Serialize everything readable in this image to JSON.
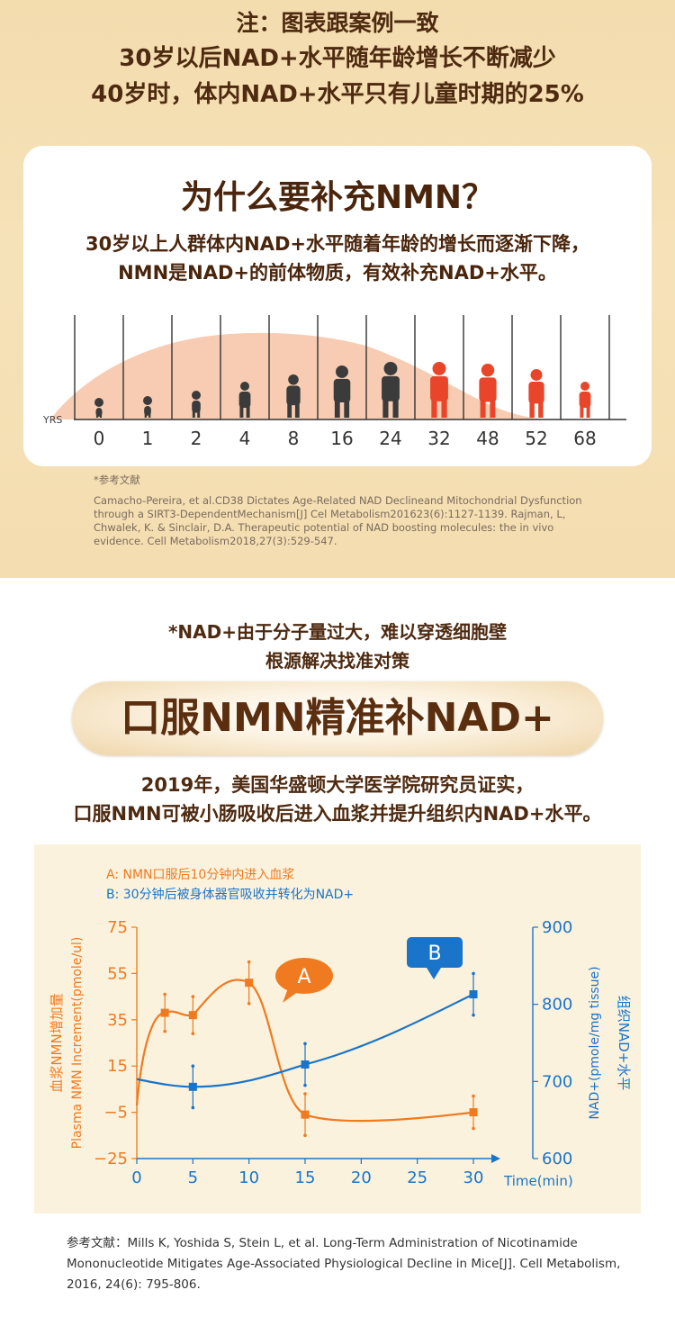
{
  "header": {
    "note": "注：图表跟案例一致",
    "line1": "30岁以后NAD+水平随年龄增长不断减少",
    "line2": "40岁时，体内NAD+水平只有儿童时期的25%"
  },
  "card": {
    "title": "为什么要补充NMN？",
    "desc1": "30岁以上人群体内NAD+水平随着年龄的增长而逐渐下降，",
    "desc2": "NMN是NAD+的前体物质，有效补充NAD+水平。",
    "yrs_label": "YRS",
    "ages": [
      "0",
      "1",
      "2",
      "4",
      "8",
      "16",
      "24",
      "32",
      "48",
      "52",
      "68"
    ],
    "curve_color": "#f6c3a5"
  },
  "reference1": {
    "title": "*参考文献",
    "text": "Camacho-Pereira, et al.CD38 Dictates Age-Related NAD Declineand Mitochondrial Dysfunction through a SIRT3-DependentMechanism[J] Cel Metabolism201623(6):1127-1139. Rajman, L, Chwalek, K. & Sinclair, D.A. Therapeutic potential of NAD boosting molecules: the in vivo evidence. Cell Metabolism2018,27(3):529-547."
  },
  "middle": {
    "line1": "*NAD+由于分子量过大，难以穿透细胞壁",
    "line2": "根源解决找准对策",
    "banner": "口服NMN精准补NAD+",
    "study1": "2019年，美国华盛顿大学医学院研究员证实，",
    "study2": "口服NMN可被小肠吸收后进入血浆并提升组织内NAD+水平。"
  },
  "chart_data": {
    "type": "line",
    "legend": [
      {
        "text": "A: NMN口服后10分钟内进入血浆",
        "color": "#f07a1f"
      },
      {
        "text": "B: 30分钟后被身体器官吸收并转化为NAD+",
        "color": "#1a74c9"
      }
    ],
    "x": [
      0,
      2.5,
      5,
      10,
      15,
      30
    ],
    "xticks": [
      "0",
      "5",
      "10",
      "15",
      "20",
      "25",
      "30"
    ],
    "xtick_values": [
      0,
      5,
      10,
      15,
      20,
      25,
      30
    ],
    "xlabel": "Time(min)",
    "xlim": [
      0,
      30
    ],
    "y_left": {
      "label_cn": "血浆NMN增加量",
      "label_en": "Plasma NMN Increment(pmole/ul)",
      "ticks": [
        "75",
        "55",
        "35",
        "15",
        "−5",
        "−25"
      ],
      "tick_values": [
        75,
        55,
        35,
        15,
        -5,
        -25
      ],
      "lim": [
        -25,
        75
      ]
    },
    "y_right": {
      "label_en": "NAD+(pmole/mg tissue)",
      "label_cn": "组织NAD+水平",
      "ticks": [
        "900",
        "800",
        "700",
        "600"
      ],
      "tick_values": [
        900,
        800,
        700,
        600
      ],
      "lim": [
        600,
        900
      ]
    },
    "series": [
      {
        "name": "A",
        "axis": "left",
        "color": "#f07a1f",
        "points": [
          {
            "x": 2.5,
            "y": 38,
            "err": 8
          },
          {
            "x": 5,
            "y": 37,
            "err": 8
          },
          {
            "x": 10,
            "y": 51,
            "err": 9
          },
          {
            "x": 15,
            "y": -6,
            "err": 9
          },
          {
            "x": 30,
            "y": -5,
            "err": 7
          }
        ]
      },
      {
        "name": "B",
        "axis": "right",
        "color": "#1a74c9",
        "points": [
          {
            "x": 5,
            "y": 693,
            "err": 27
          },
          {
            "x": 15,
            "y": 722,
            "err": 27
          },
          {
            "x": 30,
            "y": 813,
            "err": 27
          }
        ]
      }
    ],
    "callouts": [
      "A",
      "B"
    ]
  },
  "reference2": {
    "text": "参考文献：Mills K, Yoshida S, Stein L, et al. Long-Term Administration of Nicotinamide Mononucleotide Mitigates Age-Associated Physiological Decline in Mice[J]. Cell Metabolism, 2016, 24(6): 795-806."
  }
}
